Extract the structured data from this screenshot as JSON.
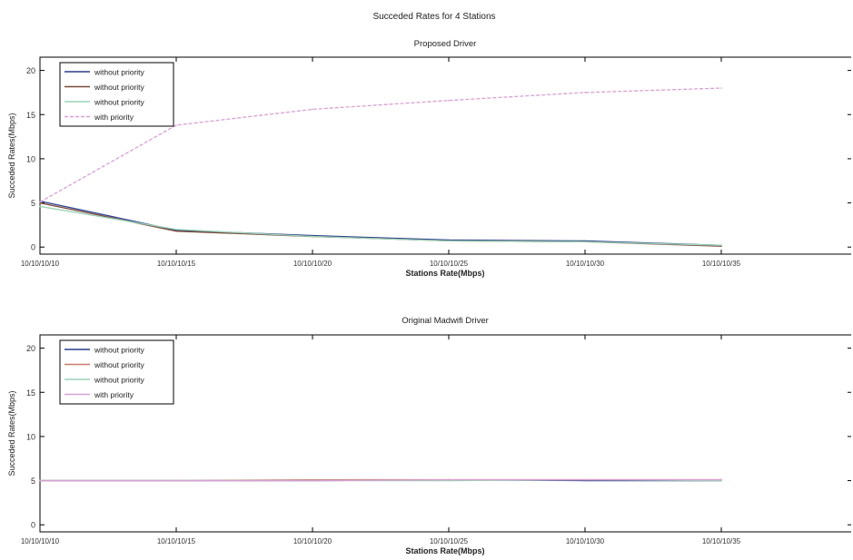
{
  "figure_title": "Succeded Rates for 4 Stations",
  "chart_data": [
    {
      "type": "line",
      "title": "Proposed Driver",
      "xlabel": "Stations Rate(Mbps)",
      "ylabel": "Succeded Rates(Mbps)",
      "categories": [
        "10/10/10/10",
        "10/10/10/15",
        "10/10/10/20",
        "10/10/10/25",
        "10/10/10/30",
        "10/10/10/35"
      ],
      "yticks": [
        0,
        5,
        10,
        15,
        20
      ],
      "ylim": [
        -0.8,
        21.5
      ],
      "grid": false,
      "legend_position": "top-left",
      "series": [
        {
          "name": "without priority",
          "color": "#2b3f8c",
          "dashed": false,
          "values": [
            5.2,
            1.9,
            1.3,
            0.8,
            0.7,
            0.2
          ]
        },
        {
          "name": "without priority",
          "color": "#7a4a3a",
          "dashed": false,
          "values": [
            5.0,
            1.8,
            1.2,
            0.7,
            0.6,
            0.1
          ]
        },
        {
          "name": "without priority",
          "color": "#9ad3b8",
          "dashed": false,
          "values": [
            4.6,
            2.0,
            1.2,
            0.7,
            0.6,
            0.2
          ]
        },
        {
          "name": "with priority",
          "color": "#d9a0d4",
          "dashed": true,
          "values": [
            5.1,
            13.8,
            15.6,
            16.6,
            17.5,
            18.0
          ]
        }
      ]
    },
    {
      "type": "line",
      "title": "Original Madwifi Driver",
      "xlabel": "Stations Rate(Mbps)",
      "ylabel": "Succeded Rates(Mbps)",
      "categories": [
        "10/10/10/10",
        "10/10/10/15",
        "10/10/10/20",
        "10/10/10/25",
        "10/10/10/30",
        "10/10/10/35"
      ],
      "yticks": [
        0,
        5,
        10,
        15,
        20
      ],
      "ylim": [
        -0.8,
        21.5
      ],
      "grid": false,
      "legend_position": "top-left",
      "series": [
        {
          "name": "without priority",
          "color": "#2b3f8c",
          "dashed": false,
          "values": [
            5.0,
            5.0,
            5.0,
            5.1,
            5.0,
            5.0
          ]
        },
        {
          "name": "without priority",
          "color": "#c77a6a",
          "dashed": false,
          "values": [
            5.0,
            5.0,
            5.1,
            5.1,
            5.1,
            5.1
          ]
        },
        {
          "name": "without priority",
          "color": "#9ad3b8",
          "dashed": false,
          "values": [
            5.0,
            5.0,
            5.0,
            5.0,
            5.1,
            5.0
          ]
        },
        {
          "name": "with priority",
          "color": "#d9a0d4",
          "dashed": false,
          "values": [
            5.0,
            5.0,
            5.0,
            5.1,
            5.1,
            5.1
          ]
        }
      ]
    }
  ]
}
